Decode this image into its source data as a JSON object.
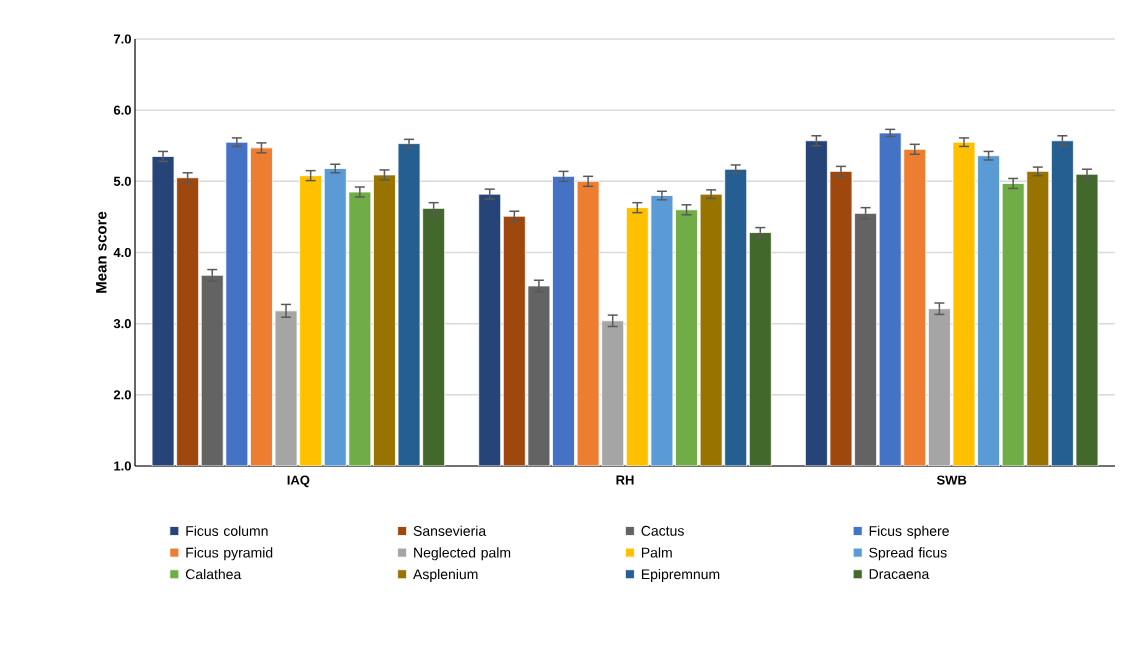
{
  "chart_data": {
    "type": "bar",
    "ylabel": "Mean score",
    "categories": [
      "IAQ",
      "RH",
      "SWB"
    ],
    "ylim": [
      1,
      7
    ],
    "yticks": [
      {
        "value": 1,
        "label": "1.0"
      },
      {
        "value": 2,
        "label": "2.0"
      },
      {
        "value": 3,
        "label": "3.0"
      },
      {
        "value": 4,
        "label": "4.0"
      },
      {
        "value": 5,
        "label": "5.0"
      },
      {
        "value": 6,
        "label": "6.0"
      },
      {
        "value": 7,
        "label": "7.0"
      }
    ],
    "grid": "y",
    "legend": "bottom",
    "series": [
      {
        "name": "Ficus column",
        "color": "#264478",
        "values": [
          5.35,
          4.82,
          5.57
        ],
        "errors": [
          0.07,
          0.07,
          0.07
        ]
      },
      {
        "name": "Sansevieria",
        "color": "#9e480e",
        "values": [
          5.05,
          4.51,
          5.14
        ],
        "errors": [
          0.07,
          0.07,
          0.07
        ]
      },
      {
        "name": "Cactus",
        "color": "#636363",
        "values": [
          3.68,
          3.53,
          4.55
        ],
        "errors": [
          0.08,
          0.08,
          0.08
        ]
      },
      {
        "name": "Ficus sphere",
        "color": "#4472c4",
        "values": [
          5.55,
          5.07,
          5.68
        ],
        "errors": [
          0.06,
          0.07,
          0.05
        ]
      },
      {
        "name": "Ficus pyramid",
        "color": "#ed7d31",
        "values": [
          5.47,
          5.0,
          5.45
        ],
        "errors": [
          0.07,
          0.07,
          0.07
        ]
      },
      {
        "name": "Neglected palm",
        "color": "#a5a5a5",
        "values": [
          3.18,
          3.04,
          3.21
        ],
        "errors": [
          0.09,
          0.08,
          0.08
        ]
      },
      {
        "name": "Palm",
        "color": "#ffc000",
        "values": [
          5.08,
          4.63,
          5.55
        ],
        "errors": [
          0.07,
          0.07,
          0.06
        ]
      },
      {
        "name": "Spread ficus",
        "color": "#5b9bd5",
        "values": [
          5.18,
          4.8,
          5.36
        ],
        "errors": [
          0.06,
          0.06,
          0.06
        ]
      },
      {
        "name": "Calathea",
        "color": "#70ad47",
        "values": [
          4.85,
          4.6,
          4.97
        ],
        "errors": [
          0.07,
          0.07,
          0.07
        ]
      },
      {
        "name": "Asplenium",
        "color": "#997300",
        "values": [
          5.09,
          4.82,
          5.14
        ],
        "errors": [
          0.07,
          0.06,
          0.06
        ]
      },
      {
        "name": "Epipremnum",
        "color": "#255e91",
        "values": [
          5.53,
          5.17,
          5.57
        ],
        "errors": [
          0.06,
          0.06,
          0.07
        ]
      },
      {
        "name": "Dracaena",
        "color": "#43682b",
        "values": [
          4.62,
          4.28,
          5.1
        ],
        "errors": [
          0.08,
          0.07,
          0.07
        ]
      }
    ]
  }
}
